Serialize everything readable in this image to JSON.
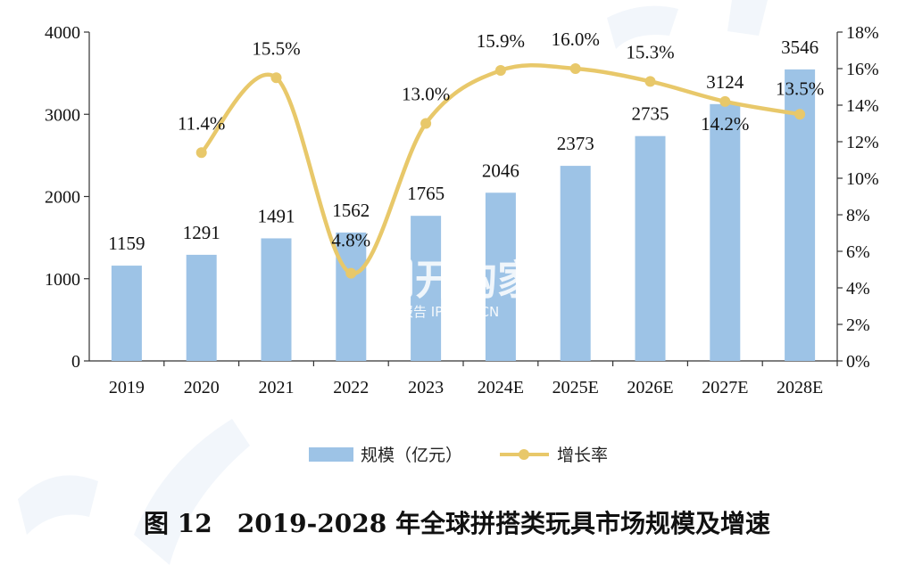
{
  "chart_data": {
    "type": "bar",
    "categories": [
      "2019",
      "2020",
      "2021",
      "2022",
      "2023",
      "2024E",
      "2025E",
      "2026E",
      "2027E",
      "2028E"
    ],
    "series": [
      {
        "name": "规模（亿元）",
        "type": "bar",
        "axis": "left",
        "color": "#9dc3e6",
        "values": [
          1159,
          1291,
          1491,
          1562,
          1765,
          2046,
          2373,
          2735,
          3124,
          3546
        ]
      },
      {
        "name": "增长率",
        "type": "line",
        "axis": "right",
        "color": "#e8c86a",
        "values": [
          null,
          11.4,
          15.5,
          4.8,
          13.0,
          15.9,
          16.0,
          15.3,
          14.2,
          13.5
        ]
      }
    ],
    "bar_labels": [
      "1159",
      "1291",
      "1491",
      "1562",
      "1765",
      "2046",
      "2373",
      "2735",
      "3124",
      "3546"
    ],
    "line_labels": [
      "",
      "11.4%",
      "15.5%",
      "4.8%",
      "13.0%",
      "15.9%",
      "16.0%",
      "15.3%",
      "14.2%",
      "13.5%"
    ],
    "y_left": {
      "min": 0,
      "max": 4000,
      "ticks": [
        "0",
        "1000",
        "2000",
        "3000",
        "4000"
      ]
    },
    "y_right": {
      "min": 0,
      "max": 18,
      "ticks": [
        "0%",
        "2%",
        "4%",
        "6%",
        "8%",
        "10%",
        "12%",
        "14%",
        "16%",
        "18%"
      ]
    },
    "grid": false,
    "legend_position": "bottom",
    "caption": "图 12　2019-2028 年全球拼搭类玩具市场规模及增速"
  },
  "watermark": {
    "brand": "开购家",
    "site": "行业报告 IPOIPO.CN"
  }
}
